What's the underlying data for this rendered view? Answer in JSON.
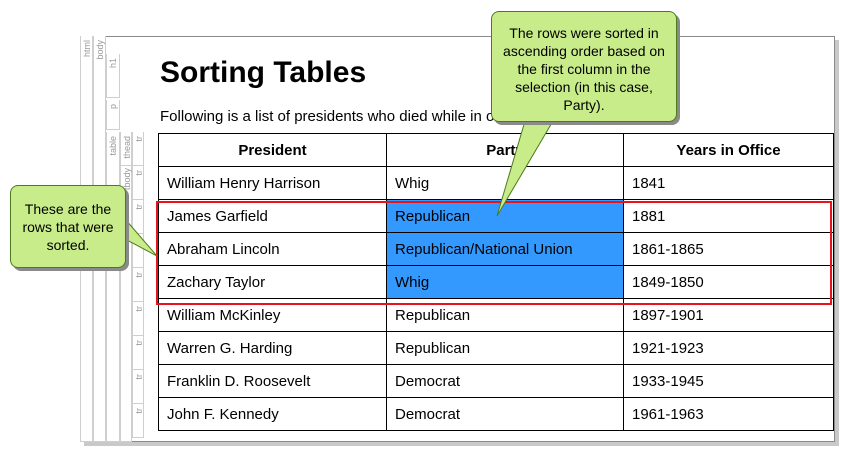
{
  "page": {
    "title": "Sorting Tables",
    "intro": "Following is a list of presidents who died while in office."
  },
  "structure_labels": [
    "html",
    "body",
    "h1",
    "p",
    "table",
    "tbody",
    "thead",
    "tr",
    "tr",
    "tr",
    "tr",
    "tr",
    "tr",
    "tr",
    "tr",
    "tr"
  ],
  "table": {
    "headers": [
      "President",
      "Party",
      "Years in Office"
    ],
    "rows": [
      [
        "William Henry Harrison",
        "Whig",
        "1841"
      ],
      [
        "James Garfield",
        "Republican",
        "1881"
      ],
      [
        "Abraham Lincoln",
        "Republican/National Union",
        "1861-1865"
      ],
      [
        "Zachary Taylor",
        "Whig",
        "1849-1850"
      ],
      [
        "William McKinley",
        "Republican",
        "1897-1901"
      ],
      [
        "Warren G. Harding",
        "Republican",
        "1921-1923"
      ],
      [
        "Franklin D. Roosevelt",
        "Democrat",
        "1933-1945"
      ],
      [
        "John F. Kennedy",
        "Democrat",
        "1961-1963"
      ]
    ],
    "selected_rows": [
      1,
      2,
      3
    ],
    "selected_column": 1
  },
  "callouts": {
    "top": "The rows were sorted in ascending order based on the first column in the selection (in this case, Party).",
    "left": "These are the rows that were sorted."
  },
  "colors": {
    "selection": "#3399ff",
    "sort_box": "#e8141b",
    "callout_fill": "#c8ec8a",
    "callout_border": "#4d7a1c"
  }
}
